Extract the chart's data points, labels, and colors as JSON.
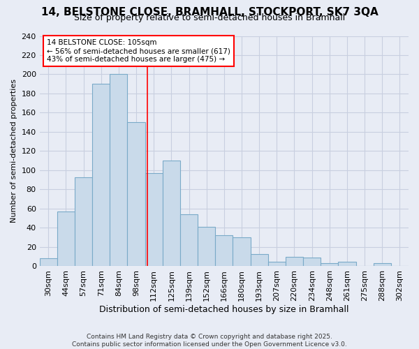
{
  "title_line1": "14, BELSTONE CLOSE, BRAMHALL, STOCKPORT, SK7 3QA",
  "title_line2": "Size of property relative to semi-detached houses in Bramhall",
  "xlabel": "Distribution of semi-detached houses by size in Bramhall",
  "ylabel": "Number of semi-detached properties",
  "bar_labels": [
    "30sqm",
    "44sqm",
    "57sqm",
    "71sqm",
    "84sqm",
    "98sqm",
    "112sqm",
    "125sqm",
    "139sqm",
    "152sqm",
    "166sqm",
    "180sqm",
    "193sqm",
    "207sqm",
    "220sqm",
    "234sqm",
    "248sqm",
    "261sqm",
    "275sqm",
    "288sqm",
    "302sqm"
  ],
  "bar_values": [
    8,
    57,
    93,
    190,
    200,
    150,
    97,
    110,
    54,
    41,
    32,
    30,
    13,
    5,
    10,
    9,
    3,
    5,
    0,
    3,
    0
  ],
  "bar_color": "#c9daea",
  "bar_edge_color": "#7aaac8",
  "grid_color": "#c8cfe0",
  "background_color": "#e8ecf5",
  "vline_color": "red",
  "vline_x": 5.62,
  "annotation_text": "14 BELSTONE CLOSE: 105sqm\n← 56% of semi-detached houses are smaller (617)\n43% of semi-detached houses are larger (475) →",
  "annotation_box_color": "white",
  "annotation_box_edge": "red",
  "footer_line1": "Contains HM Land Registry data © Crown copyright and database right 2025.",
  "footer_line2": "Contains public sector information licensed under the Open Government Licence v3.0.",
  "ylim": [
    0,
    240
  ],
  "yticks": [
    0,
    20,
    40,
    60,
    80,
    100,
    120,
    140,
    160,
    180,
    200,
    220,
    240
  ],
  "title1_fontsize": 11,
  "title2_fontsize": 9,
  "ylabel_fontsize": 8,
  "xlabel_fontsize": 9,
  "tick_fontsize": 8,
  "annot_fontsize": 7.5,
  "footer_fontsize": 6.5
}
